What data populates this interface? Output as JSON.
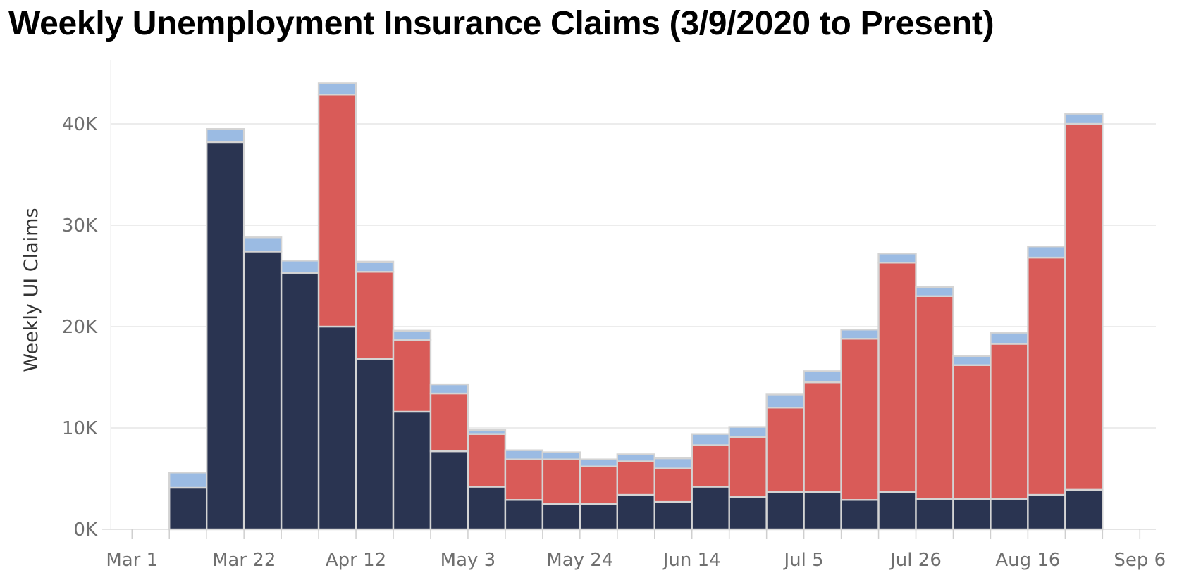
{
  "chart_data": {
    "type": "bar",
    "stacked": true,
    "title": "Weekly Unemployment Insurance Claims (3/9/2020 to Present)",
    "xlabel": "",
    "ylabel": "Weekly UI Claims",
    "ylim": [
      0,
      45000
    ],
    "y_ticks": [
      {
        "value": 0,
        "label": "0K"
      },
      {
        "value": 10000,
        "label": "10K"
      },
      {
        "value": 20000,
        "label": "20K"
      },
      {
        "value": 30000,
        "label": "30K"
      },
      {
        "value": 40000,
        "label": "40K"
      }
    ],
    "x_range": [
      "2020-02-26",
      "2020-09-09"
    ],
    "x_ticks": [
      {
        "date": "2020-03-01",
        "label": "Mar 1"
      },
      {
        "date": "2020-03-22",
        "label": "Mar 22"
      },
      {
        "date": "2020-04-12",
        "label": "Apr 12"
      },
      {
        "date": "2020-05-03",
        "label": "May 3"
      },
      {
        "date": "2020-05-24",
        "label": "May 24"
      },
      {
        "date": "2020-06-14",
        "label": "Jun 14"
      },
      {
        "date": "2020-07-05",
        "label": "Jul 5"
      },
      {
        "date": "2020-07-26",
        "label": "Jul 26"
      },
      {
        "date": "2020-08-16",
        "label": "Aug 16"
      },
      {
        "date": "2020-09-06",
        "label": "Sep 6"
      }
    ],
    "grid": true,
    "legend": "none",
    "series_colors": [
      "#2a3451",
      "#d95b58",
      "#9bbbe3"
    ],
    "bars": [
      {
        "start": "2020-03-08",
        "end": "2020-03-15",
        "values": [
          4100,
          0,
          1500
        ]
      },
      {
        "start": "2020-03-15",
        "end": "2020-03-22",
        "values": [
          38200,
          0,
          1300
        ]
      },
      {
        "start": "2020-03-22",
        "end": "2020-03-29",
        "values": [
          27400,
          0,
          1400
        ]
      },
      {
        "start": "2020-03-29",
        "end": "2020-04-05",
        "values": [
          25300,
          0,
          1200
        ]
      },
      {
        "start": "2020-04-05",
        "end": "2020-04-12",
        "values": [
          20000,
          22900,
          1100
        ]
      },
      {
        "start": "2020-04-12",
        "end": "2020-04-19",
        "values": [
          16800,
          8600,
          1000
        ]
      },
      {
        "start": "2020-04-19",
        "end": "2020-04-26",
        "values": [
          11600,
          7100,
          900
        ]
      },
      {
        "start": "2020-04-26",
        "end": "2020-05-03",
        "values": [
          7700,
          5700,
          900
        ]
      },
      {
        "start": "2020-05-03",
        "end": "2020-05-10",
        "values": [
          4200,
          5200,
          400
        ]
      },
      {
        "start": "2020-05-10",
        "end": "2020-05-17",
        "values": [
          2900,
          4000,
          900
        ]
      },
      {
        "start": "2020-05-17",
        "end": "2020-05-24",
        "values": [
          2500,
          4400,
          700
        ]
      },
      {
        "start": "2020-05-24",
        "end": "2020-05-31",
        "values": [
          2500,
          3700,
          700
        ]
      },
      {
        "start": "2020-05-31",
        "end": "2020-06-07",
        "values": [
          3400,
          3300,
          700
        ]
      },
      {
        "start": "2020-06-07",
        "end": "2020-06-14",
        "values": [
          2700,
          3300,
          1000
        ]
      },
      {
        "start": "2020-06-14",
        "end": "2020-06-21",
        "values": [
          4200,
          4100,
          1100
        ]
      },
      {
        "start": "2020-06-21",
        "end": "2020-06-28",
        "values": [
          3200,
          5900,
          1000
        ]
      },
      {
        "start": "2020-06-28",
        "end": "2020-07-05",
        "values": [
          3700,
          8300,
          1300
        ]
      },
      {
        "start": "2020-07-05",
        "end": "2020-07-12",
        "values": [
          3700,
          10800,
          1100
        ]
      },
      {
        "start": "2020-07-12",
        "end": "2020-07-19",
        "values": [
          2900,
          15900,
          900
        ]
      },
      {
        "start": "2020-07-19",
        "end": "2020-07-26",
        "values": [
          3700,
          22600,
          900
        ]
      },
      {
        "start": "2020-07-26",
        "end": "2020-08-02",
        "values": [
          3000,
          20000,
          900
        ]
      },
      {
        "start": "2020-08-02",
        "end": "2020-08-09",
        "values": [
          3000,
          13200,
          900
        ]
      },
      {
        "start": "2020-08-09",
        "end": "2020-08-16",
        "values": [
          3000,
          15300,
          1100
        ]
      },
      {
        "start": "2020-08-16",
        "end": "2020-08-23",
        "values": [
          3400,
          23400,
          1100
        ]
      },
      {
        "start": "2020-08-23",
        "end": "2020-08-30",
        "values": [
          3900,
          36100,
          1000
        ]
      }
    ]
  }
}
